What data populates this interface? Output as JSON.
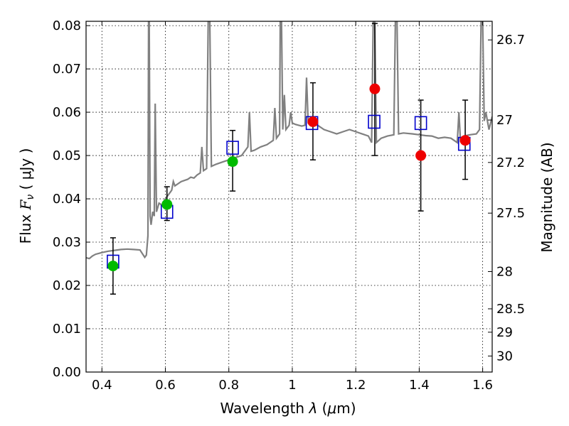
{
  "chart_data": {
    "type": "scatter",
    "xlabel": "Wavelength  λ (μm)",
    "ylabel": "Flux  F_ν  ( μJy )",
    "ylabel_parts": {
      "prefix": "Flux ",
      "F": "F",
      "nu": "ν",
      "suffix": " ( μJy )"
    },
    "xlabel_parts": {
      "prefix": "Wavelength  ",
      "lambda": "λ",
      "mid": " (",
      "mu": "μ",
      "suffix": "m)"
    },
    "y2label": "Magnitude (AB)",
    "xlim": [
      0.35,
      1.63
    ],
    "ylim": [
      0.0,
      0.081
    ],
    "grid": true,
    "x_ticks": [
      0.4,
      0.6,
      0.8,
      1.0,
      1.2,
      1.4,
      1.6
    ],
    "x_tick_labels": [
      "0.4",
      "0.6",
      "0.8",
      "1",
      "1.2",
      "1.4",
      "1.6"
    ],
    "y_ticks": [
      0.0,
      0.01,
      0.02,
      0.03,
      0.04,
      0.05,
      0.06,
      0.07,
      0.08
    ],
    "y_tick_labels": [
      "0.00",
      "0.01",
      "0.02",
      "0.03",
      "0.04",
      "0.05",
      "0.06",
      "0.07",
      "0.08"
    ],
    "y2_ticks": [
      {
        "label": "26.7",
        "flux": 0.0767
      },
      {
        "label": "27",
        "flux": 0.0582
      },
      {
        "label": "27.2",
        "flux": 0.0484
      },
      {
        "label": "27.5",
        "flux": 0.0367
      },
      {
        "label": "28",
        "flux": 0.0232
      },
      {
        "label": "28.5",
        "flux": 0.0146
      },
      {
        "label": "29",
        "flux": 0.0092
      },
      {
        "label": "30",
        "flux": 0.0037
      }
    ],
    "colors": {
      "spectrum": "#808080",
      "model": "#0000cc",
      "green": "#00bb00",
      "red": "#ee0000",
      "error": "#000000"
    },
    "spectrum": [
      [
        0.35,
        0.0264
      ],
      [
        0.36,
        0.0262
      ],
      [
        0.37,
        0.0268
      ],
      [
        0.38,
        0.0272
      ],
      [
        0.39,
        0.0274
      ],
      [
        0.4,
        0.0276
      ],
      [
        0.42,
        0.0279
      ],
      [
        0.44,
        0.0281
      ],
      [
        0.46,
        0.0283
      ],
      [
        0.48,
        0.0284
      ],
      [
        0.5,
        0.0283
      ],
      [
        0.52,
        0.0282
      ],
      [
        0.535,
        0.0265
      ],
      [
        0.54,
        0.027
      ],
      [
        0.545,
        0.0315
      ],
      [
        0.547,
        0.081
      ],
      [
        0.549,
        0.081
      ],
      [
        0.552,
        0.036
      ],
      [
        0.555,
        0.034
      ],
      [
        0.56,
        0.037
      ],
      [
        0.565,
        0.036
      ],
      [
        0.568,
        0.062
      ],
      [
        0.572,
        0.037
      ],
      [
        0.58,
        0.039
      ],
      [
        0.59,
        0.0385
      ],
      [
        0.6,
        0.04
      ],
      [
        0.605,
        0.0405
      ],
      [
        0.61,
        0.041
      ],
      [
        0.62,
        0.042
      ],
      [
        0.625,
        0.044
      ],
      [
        0.63,
        0.043
      ],
      [
        0.65,
        0.044
      ],
      [
        0.67,
        0.0445
      ],
      [
        0.68,
        0.045
      ],
      [
        0.69,
        0.0448
      ],
      [
        0.7,
        0.0455
      ],
      [
        0.71,
        0.046
      ],
      [
        0.715,
        0.052
      ],
      [
        0.72,
        0.0465
      ],
      [
        0.73,
        0.047
      ],
      [
        0.735,
        0.081
      ],
      [
        0.74,
        0.081
      ],
      [
        0.745,
        0.0475
      ],
      [
        0.76,
        0.048
      ],
      [
        0.78,
        0.0485
      ],
      [
        0.8,
        0.049
      ],
      [
        0.82,
        0.0495
      ],
      [
        0.84,
        0.05
      ],
      [
        0.86,
        0.052
      ],
      [
        0.865,
        0.06
      ],
      [
        0.87,
        0.051
      ],
      [
        0.88,
        0.0512
      ],
      [
        0.9,
        0.052
      ],
      [
        0.92,
        0.0525
      ],
      [
        0.94,
        0.0535
      ],
      [
        0.945,
        0.061
      ],
      [
        0.95,
        0.054
      ],
      [
        0.96,
        0.055
      ],
      [
        0.962,
        0.081
      ],
      [
        0.966,
        0.081
      ],
      [
        0.97,
        0.056
      ],
      [
        0.975,
        0.064
      ],
      [
        0.98,
        0.056
      ],
      [
        0.99,
        0.057
      ],
      [
        0.995,
        0.06
      ],
      [
        1.0,
        0.0575
      ],
      [
        1.01,
        0.0572
      ],
      [
        1.02,
        0.057
      ],
      [
        1.03,
        0.0568
      ],
      [
        1.04,
        0.057
      ],
      [
        1.045,
        0.068
      ],
      [
        1.05,
        0.0575
      ],
      [
        1.06,
        0.0572
      ],
      [
        1.08,
        0.057
      ],
      [
        1.1,
        0.056
      ],
      [
        1.12,
        0.0555
      ],
      [
        1.14,
        0.055
      ],
      [
        1.16,
        0.0555
      ],
      [
        1.18,
        0.056
      ],
      [
        1.2,
        0.0555
      ],
      [
        1.22,
        0.055
      ],
      [
        1.24,
        0.0545
      ],
      [
        1.25,
        0.053
      ],
      [
        1.255,
        0.081
      ],
      [
        1.26,
        0.081
      ],
      [
        1.265,
        0.053
      ],
      [
        1.28,
        0.054
      ],
      [
        1.3,
        0.0545
      ],
      [
        1.32,
        0.0548
      ],
      [
        1.325,
        0.081
      ],
      [
        1.33,
        0.081
      ],
      [
        1.335,
        0.055
      ],
      [
        1.35,
        0.0552
      ],
      [
        1.38,
        0.055
      ],
      [
        1.4,
        0.0548
      ],
      [
        1.42,
        0.0546
      ],
      [
        1.44,
        0.0545
      ],
      [
        1.46,
        0.054
      ],
      [
        1.48,
        0.0542
      ],
      [
        1.5,
        0.054
      ],
      [
        1.52,
        0.053
      ],
      [
        1.525,
        0.06
      ],
      [
        1.53,
        0.0535
      ],
      [
        1.54,
        0.0545
      ],
      [
        1.56,
        0.0548
      ],
      [
        1.58,
        0.055
      ],
      [
        1.59,
        0.056
      ],
      [
        1.595,
        0.081
      ],
      [
        1.6,
        0.081
      ],
      [
        1.605,
        0.058
      ],
      [
        1.61,
        0.06
      ],
      [
        1.62,
        0.056
      ],
      [
        1.63,
        0.059
      ]
    ],
    "model_squares": [
      {
        "x": 0.435,
        "y": 0.0255
      },
      {
        "x": 0.605,
        "y": 0.037
      },
      {
        "x": 0.812,
        "y": 0.0518
      },
      {
        "x": 1.062,
        "y": 0.0575
      },
      {
        "x": 1.258,
        "y": 0.0578
      },
      {
        "x": 1.405,
        "y": 0.0575
      },
      {
        "x": 1.542,
        "y": 0.0527
      }
    ],
    "observed_points": [
      {
        "x": 0.435,
        "y": 0.0245,
        "err_low": 0.018,
        "err_high": 0.031,
        "color": "green"
      },
      {
        "x": 0.605,
        "y": 0.0387,
        "err_low": 0.035,
        "err_high": 0.0428,
        "color": "green"
      },
      {
        "x": 0.812,
        "y": 0.0486,
        "err_low": 0.0418,
        "err_high": 0.0558,
        "color": "green"
      },
      {
        "x": 1.065,
        "y": 0.0578,
        "err_low": 0.049,
        "err_high": 0.0668,
        "color": "red"
      },
      {
        "x": 1.26,
        "y": 0.0654,
        "err_low": 0.05,
        "err_high": 0.0805,
        "color": "red"
      },
      {
        "x": 1.405,
        "y": 0.05,
        "err_low": 0.0372,
        "err_high": 0.0628,
        "color": "red"
      },
      {
        "x": 1.545,
        "y": 0.0535,
        "err_low": 0.0445,
        "err_high": 0.0628,
        "color": "red"
      }
    ]
  }
}
